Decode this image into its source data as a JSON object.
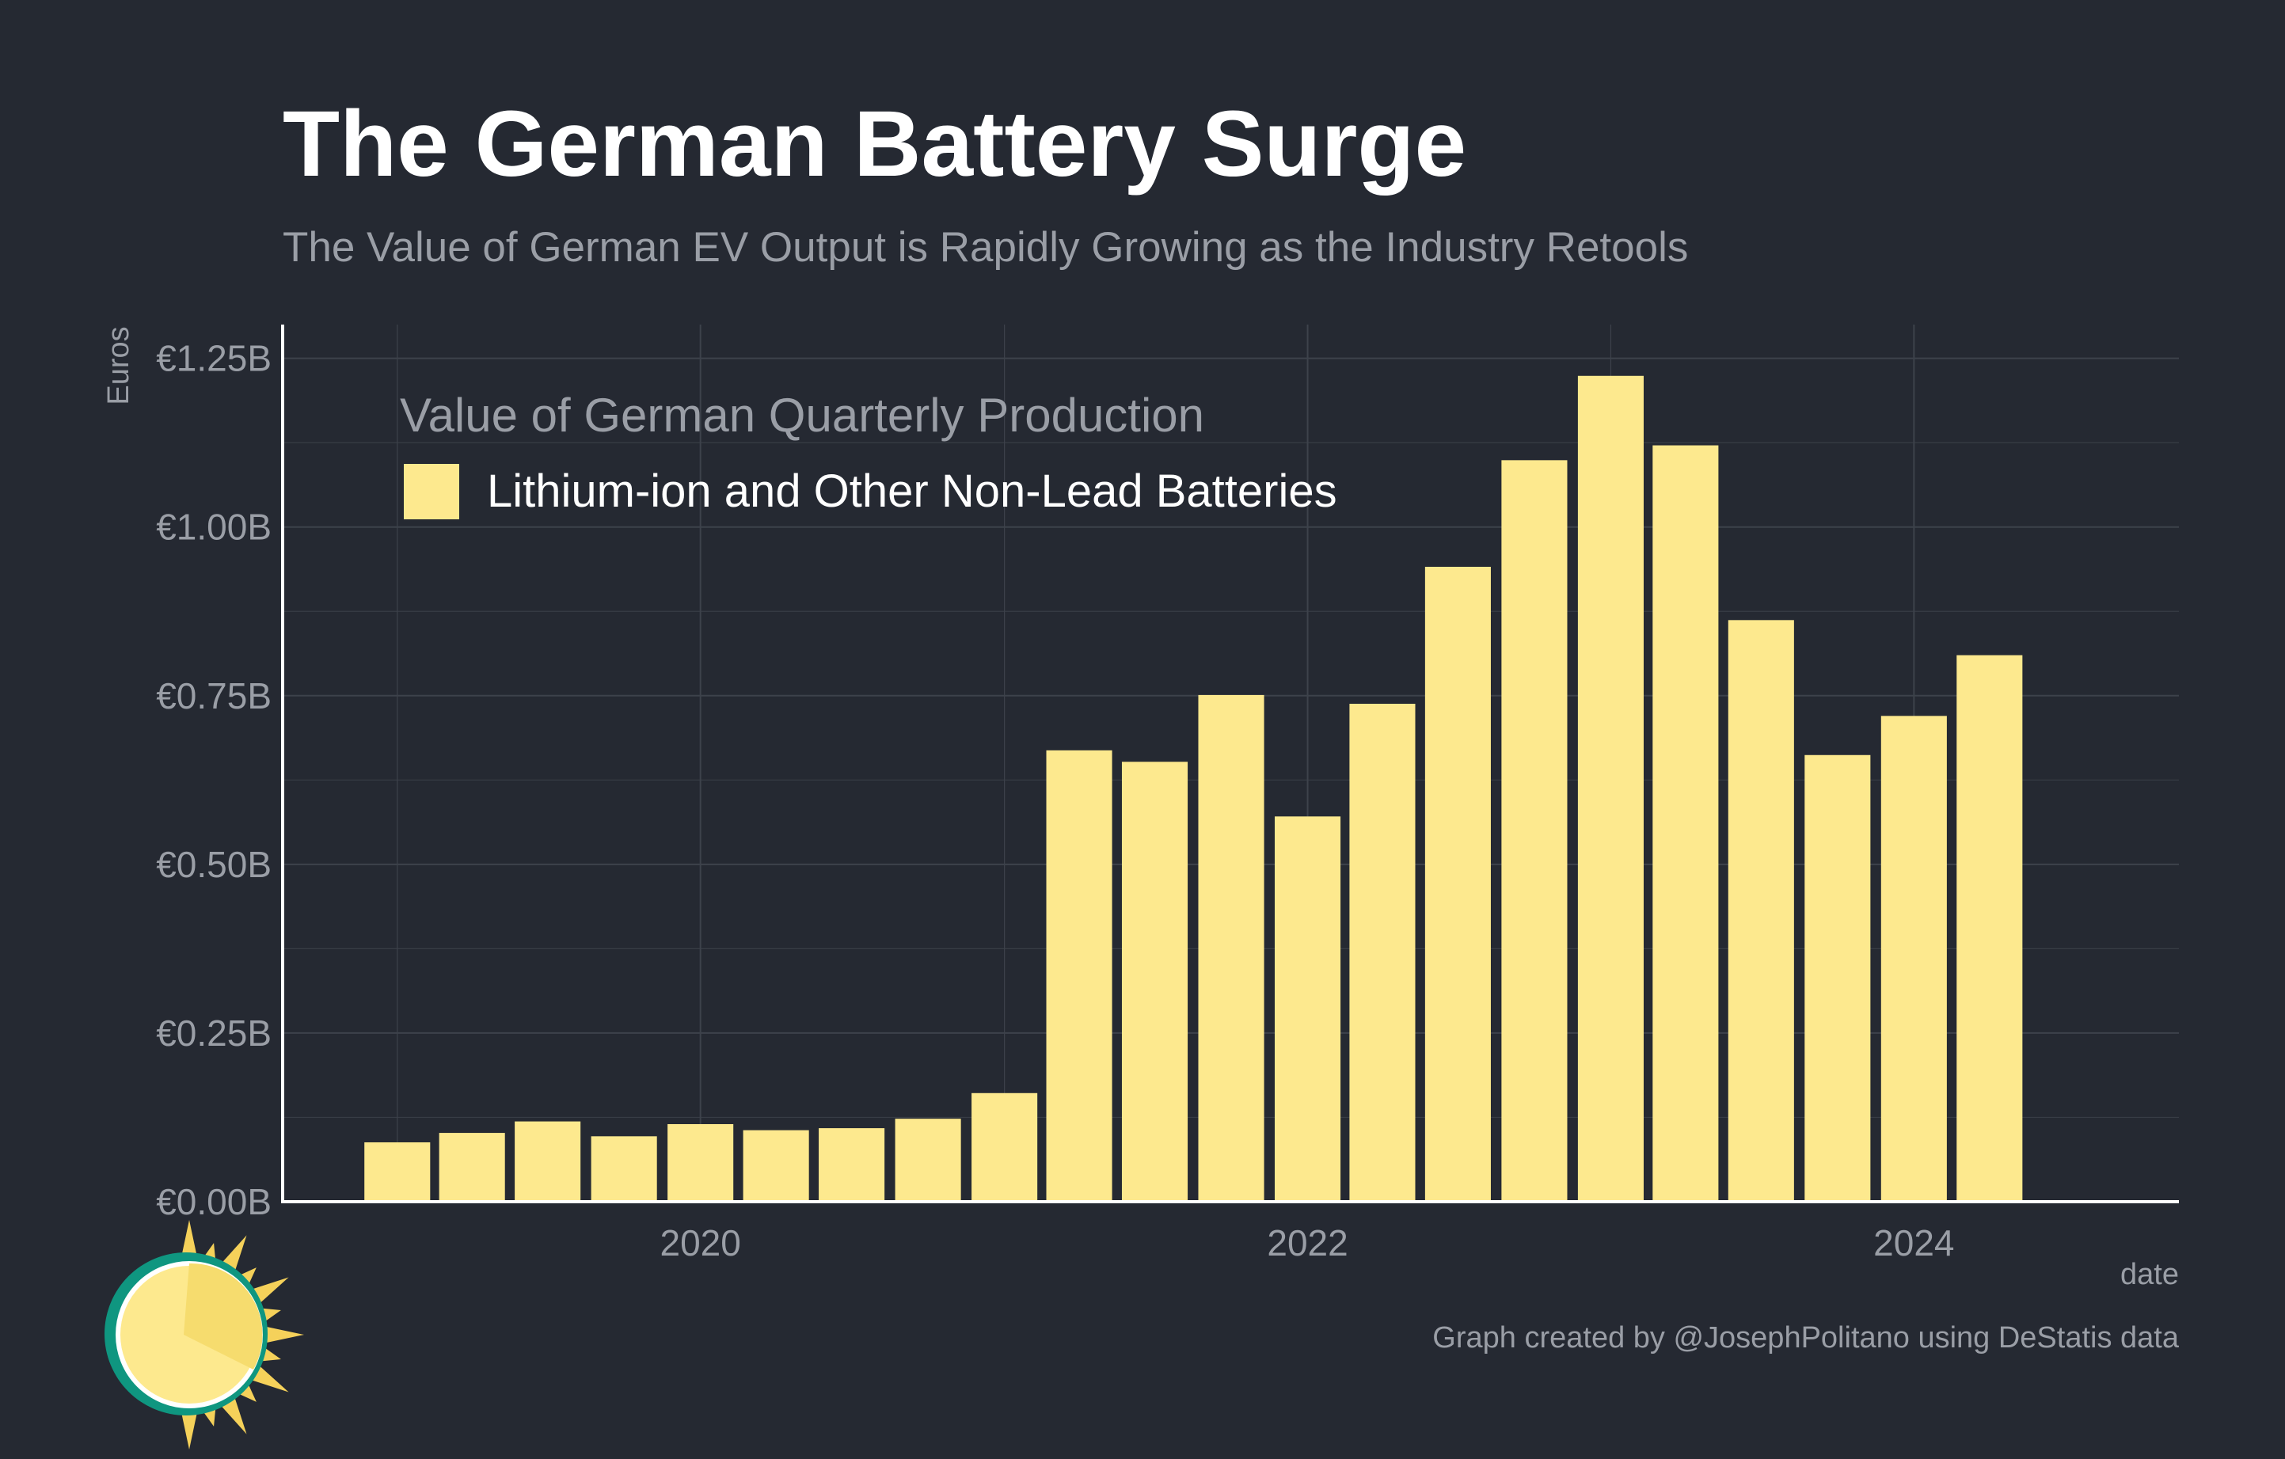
{
  "colors": {
    "background": "#252932",
    "bar": "#fde98e",
    "grid": "#3d424b",
    "axis": "#ffffff",
    "muted_text": "#9a9ea6",
    "logo_ring": "#0f9680",
    "logo_sun": "#fde98e",
    "logo_rays": "#f5d15a"
  },
  "logo": {
    "icon": "sun-logo-icon"
  },
  "chart_data": {
    "type": "bar",
    "title": "The German Battery Surge",
    "subtitle": "The Value of German EV Output is Rapidly Growing as the Industry Retools",
    "ylabel": "Euros",
    "xlabel": "date",
    "caption": "Graph created by @JosephPolitano using DeStatis data",
    "legend": {
      "title": "Value of German Quarterly Production",
      "position": "top-left",
      "entries": [
        "Lithium-ion and Other Non-Lead Batteries"
      ]
    },
    "ylim": [
      0,
      1.3
    ],
    "yticks": [
      0,
      0.25,
      0.5,
      0.75,
      1.0,
      1.25
    ],
    "ytick_labels": [
      "€0.00B",
      "€0.25B",
      "€0.50B",
      "€0.75B",
      "€1.00B",
      "€1.25B"
    ],
    "xlim": [
      "2018-08-16",
      "2024-11-15"
    ],
    "xticks": [
      "2020-01-01",
      "2022-01-01",
      "2024-01-01"
    ],
    "xtick_labels": [
      "2020",
      "2022",
      "2024"
    ],
    "grid": true,
    "series": [
      {
        "name": "Lithium-ion and Other Non-Lead Batteries",
        "x": [
          "2019-01-01",
          "2019-04-01",
          "2019-07-01",
          "2019-10-01",
          "2020-01-01",
          "2020-04-01",
          "2020-07-01",
          "2020-10-01",
          "2021-01-01",
          "2021-04-01",
          "2021-07-01",
          "2021-10-01",
          "2022-01-01",
          "2022-04-01",
          "2022-07-01",
          "2022-10-01",
          "2023-01-01",
          "2023-04-01",
          "2023-07-01",
          "2023-10-01",
          "2024-01-01",
          "2024-04-01"
        ],
        "values": [
          0.088,
          0.102,
          0.119,
          0.097,
          0.115,
          0.106,
          0.109,
          0.123,
          0.161,
          0.669,
          0.652,
          0.751,
          0.571,
          0.738,
          0.941,
          1.099,
          1.224,
          1.121,
          0.862,
          0.662,
          0.72,
          0.81
        ]
      }
    ]
  }
}
